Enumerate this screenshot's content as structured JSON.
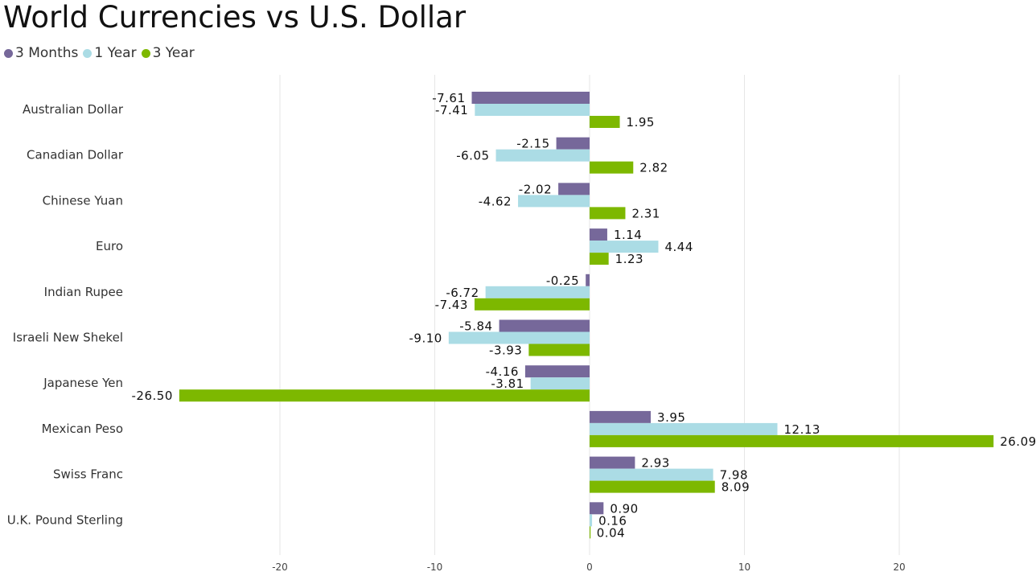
{
  "chart_data": {
    "type": "bar",
    "orientation": "horizontal",
    "title": "World Currencies vs U.S. Dollar",
    "categories": [
      "Australian Dollar",
      "Canadian Dollar",
      "Chinese Yuan",
      "Euro",
      "Indian Rupee",
      "Israeli New Shekel",
      "Japanese Yen",
      "Mexican Peso",
      "Swiss Franc",
      "U.K. Pound Sterling"
    ],
    "series": [
      {
        "name": "3 Months",
        "color": "#76689a",
        "values": [
          -7.61,
          -2.15,
          -2.02,
          1.14,
          -0.25,
          -5.84,
          -4.16,
          3.95,
          2.93,
          0.9
        ],
        "labels": [
          "-7.61",
          "-2.15",
          "-2.02",
          "1.14",
          "-0.25",
          "-5.84",
          "-4.16",
          "3.95",
          "2.93",
          "0.90"
        ]
      },
      {
        "name": "1 Year",
        "color": "#abdce5",
        "values": [
          -7.41,
          -6.05,
          -4.62,
          4.44,
          -6.72,
          -9.1,
          -3.81,
          12.13,
          7.98,
          0.16
        ],
        "labels": [
          "-7.41",
          "-6.05",
          "-4.62",
          "4.44",
          "-6.72",
          "-9.10",
          "-3.81",
          "12.13",
          "7.98",
          "0.16"
        ]
      },
      {
        "name": "3 Year",
        "color": "#7db800",
        "values": [
          1.95,
          2.82,
          2.31,
          1.23,
          -7.43,
          -3.93,
          -26.5,
          26.09,
          8.09,
          0.04
        ],
        "labels": [
          "1.95",
          "2.82",
          "2.31",
          "1.23",
          "-7.43",
          "-3.93",
          "-26.50",
          "26.09",
          "8.09",
          "0.04"
        ]
      }
    ],
    "xlim": [
      -27,
      28
    ],
    "xticks": [
      -20,
      -10,
      0,
      10,
      20
    ],
    "xtick_labels": [
      "-20",
      "-10",
      "0",
      "10",
      "20"
    ],
    "grid": true,
    "legend_position": "top-left"
  }
}
